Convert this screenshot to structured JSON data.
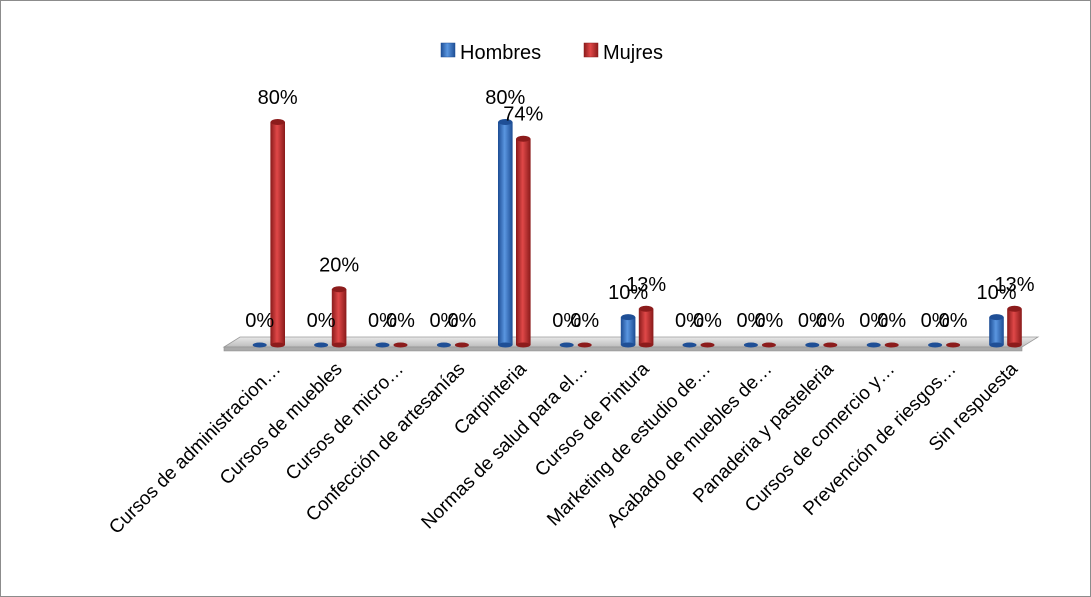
{
  "chart_data": {
    "type": "bar",
    "title": "",
    "xlabel": "",
    "ylabel": "",
    "ylim": [
      0,
      80
    ],
    "grid": false,
    "legend_position": "top",
    "categories": [
      "Cursos de administracion…",
      "Cursos de muebles",
      "Cursos de micro…",
      "Confección de artesanías",
      "Carpinteria",
      "Normas de salud para el…",
      "Cursos de Pintura",
      "Marketing de estudio de…",
      "Acabado de muebles de…",
      "Panaderia y pasteleria",
      "Cursos de comercio y…",
      "Prevención de riesgos…",
      "Sin respuesta"
    ],
    "series": [
      {
        "name": "Hombres",
        "color": "#3a78c9",
        "values": [
          0,
          0,
          0,
          0,
          80,
          0,
          10,
          0,
          0,
          0,
          0,
          0,
          10
        ],
        "labels": [
          "0%",
          "0%",
          "0%",
          "0%",
          "80%",
          "0%",
          "10%",
          "0%",
          "0%",
          "0%",
          "0%",
          "0%",
          "10%"
        ]
      },
      {
        "name": "Mujres",
        "color": "#c83030",
        "values": [
          80,
          20,
          0,
          0,
          74,
          0,
          13,
          0,
          0,
          0,
          0,
          0,
          13
        ],
        "labels": [
          "80%",
          "20%",
          "0%",
          "0%",
          "74%",
          "0%",
          "13%",
          "0%",
          "0%",
          "0%",
          "0%",
          "0%",
          "13%"
        ]
      }
    ]
  }
}
